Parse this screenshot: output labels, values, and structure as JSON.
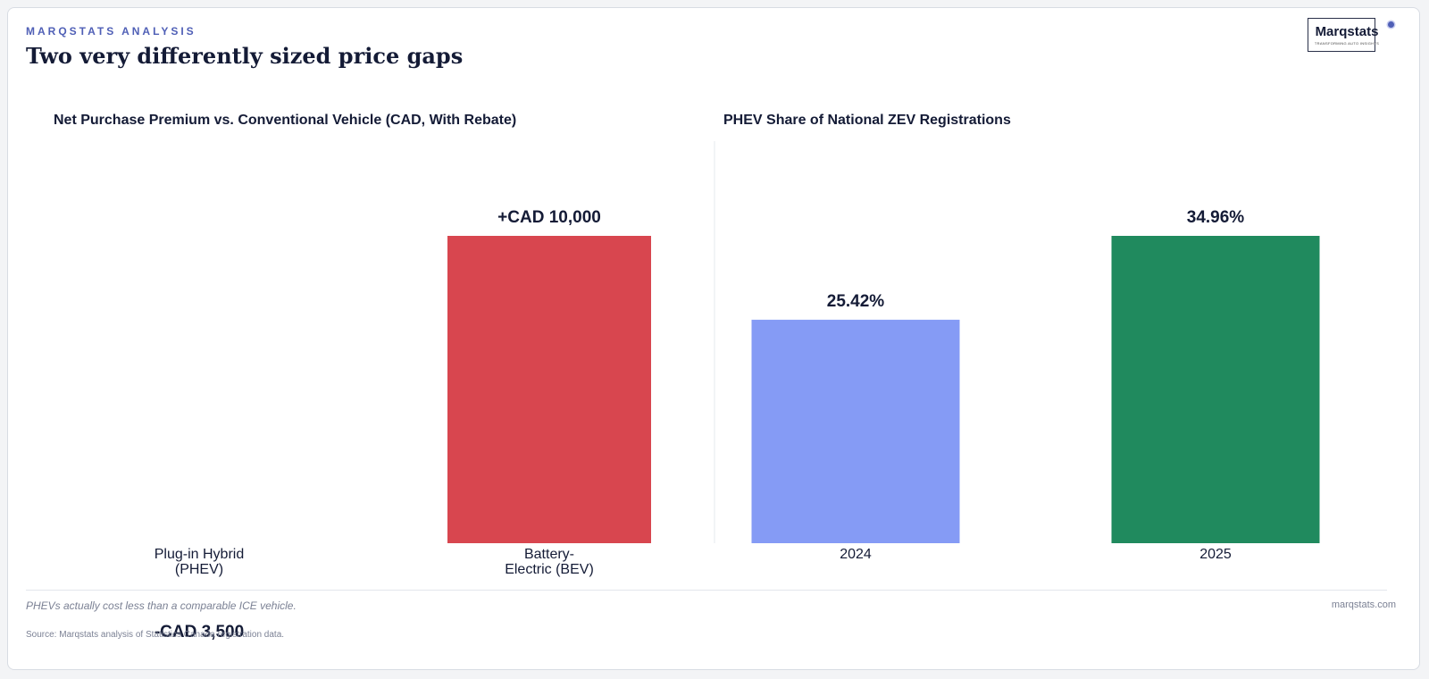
{
  "header": {
    "eyebrow": "MARQSTATS ANALYSIS",
    "title": "Two very differently sized price gaps"
  },
  "logo": {
    "word": "Marqstats",
    "tagline": "TRANSFORMING AUTO INSIGHTS"
  },
  "chart_data": [
    {
      "type": "bar",
      "title": "Net Purchase Premium vs. Conventional Vehicle (CAD, With Rebate)",
      "categories": [
        "Plug-in Hybrid\n(PHEV)",
        "Battery-\nElectric (BEV)"
      ],
      "values": [
        -3500,
        10000
      ],
      "data_labels": [
        "-CAD 3,500",
        "+CAD 10,000"
      ],
      "colors": [
        "#d8464f",
        "#d8464f"
      ],
      "ylim": [
        0,
        10000
      ],
      "grid": false,
      "xlabel": "",
      "ylabel": ""
    },
    {
      "type": "bar",
      "title": "PHEV Share of National ZEV Registrations",
      "categories": [
        "2024",
        "2025"
      ],
      "values": [
        25.42,
        34.96
      ],
      "data_labels": [
        "25.42%",
        "34.96%"
      ],
      "colors": [
        "#859bf5",
        "#208a5e"
      ],
      "ylim": [
        0,
        34.96
      ],
      "grid": false,
      "xlabel": "",
      "ylabel": ""
    }
  ],
  "footer": {
    "note": "PHEVs actually cost less than a comparable ICE vehicle.",
    "source": "Source: Marqstats analysis of Statistics Canada registration data.",
    "site": "marqstats.com"
  }
}
